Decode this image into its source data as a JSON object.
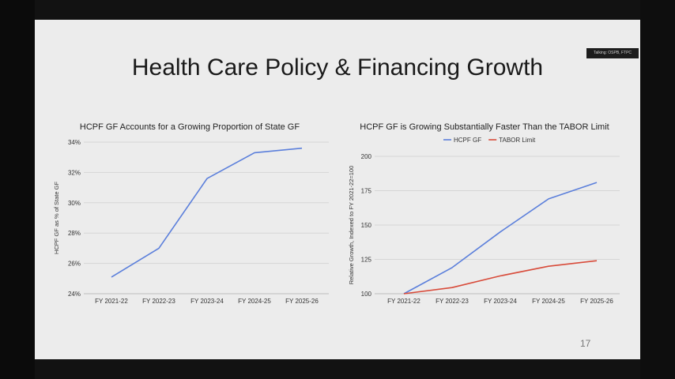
{
  "slide": {
    "title": "Health Care Policy & Financing Growth",
    "speaker_tag": "Talking: OSPB, FTPC",
    "page_number": "17"
  },
  "chart_data": [
    {
      "type": "line",
      "title": "HCPF GF Accounts for a Growing Proportion of State GF",
      "xlabel": "",
      "ylabel": "HCPF GF as % of State GF",
      "categories": [
        "FY 2021-22",
        "FY 2022-23",
        "FY 2023-24",
        "FY 2024-25",
        "FY 2025-26"
      ],
      "yticks": [
        "24%",
        "26%",
        "28%",
        "30%",
        "32%",
        "34%"
      ],
      "ylim": [
        24,
        34
      ],
      "grid": true,
      "series": [
        {
          "name": "",
          "color": "#5b7fdb",
          "values": [
            25.1,
            27.0,
            31.6,
            33.3,
            33.6
          ]
        }
      ]
    },
    {
      "type": "line",
      "title": "HCPF GF is Growing Substantially Faster Than the TABOR Limit",
      "xlabel": "",
      "ylabel": "Relative Growth, Indexed to FY 2021-22=100",
      "categories": [
        "FY 2021-22",
        "FY 2022-23",
        "FY 2023-24",
        "FY 2024-25",
        "FY 2025-26"
      ],
      "yticks": [
        "100",
        "125",
        "150",
        "175",
        "200"
      ],
      "ylim": [
        100,
        200
      ],
      "grid": true,
      "legend": "top-center",
      "series": [
        {
          "name": "HCPF GF",
          "color": "#5b7fdb",
          "values": [
            100,
            119,
            145,
            169,
            181
          ]
        },
        {
          "name": "TABOR Limit",
          "color": "#d84b3a",
          "values": [
            100,
            104.5,
            113,
            120,
            124
          ]
        }
      ]
    }
  ]
}
